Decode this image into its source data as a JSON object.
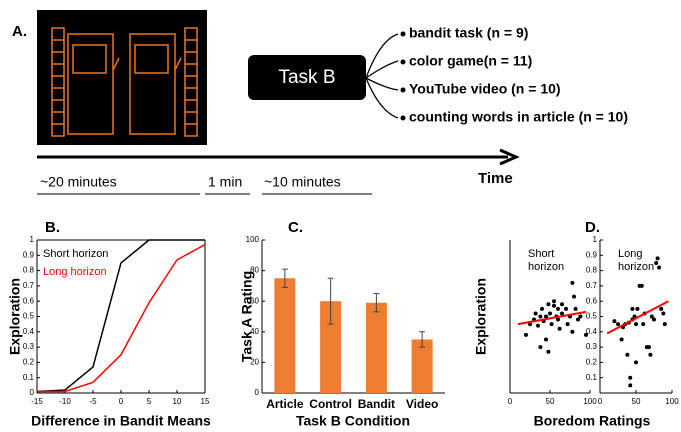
{
  "panel_a": {
    "label": "A.",
    "box_label": "Task B",
    "tasks": [
      "bandit task (n = 9)",
      "color game(n = 11)",
      "YouTube video (n = 10)",
      "counting words in article (n = 10)"
    ],
    "durations": [
      "~20 minutes",
      "1 min",
      "~10 minutes"
    ],
    "axis_label": "Time"
  },
  "chart_data": [
    {
      "type": "line",
      "label": "B.",
      "xlabel": "Difference in Bandit Means",
      "ylabel": "Exploration",
      "x": [
        -15,
        -10,
        -5,
        0,
        5,
        10,
        15
      ],
      "series": [
        {
          "name": "Short horizon",
          "color": "#000000",
          "values": [
            0.01,
            0.02,
            0.17,
            0.85,
            1,
            1,
            1
          ]
        },
        {
          "name": "Long horizon",
          "color": "#ff0000",
          "values": [
            0.01,
            0.01,
            0.07,
            0.25,
            0.59,
            0.87,
            0.97
          ]
        }
      ],
      "xlim": [
        -15,
        15
      ],
      "xticks": [
        -15,
        -10,
        -5,
        0,
        5,
        10,
        15
      ],
      "ylim": [
        0,
        1
      ],
      "yticks": [
        0,
        0.1,
        0.2,
        0.3,
        0.4,
        0.5,
        0.6,
        0.7,
        0.8,
        0.9,
        1
      ]
    },
    {
      "type": "bar",
      "label": "C.",
      "xlabel": "Task B Condition",
      "ylabel": "Task A Rating",
      "categories": [
        "Article",
        "Control",
        "Bandit",
        "Video"
      ],
      "values": [
        75,
        60,
        59,
        35
      ],
      "errors": [
        6,
        15,
        6,
        5
      ],
      "color": "#ed7d31",
      "ylim": [
        0,
        100
      ],
      "yticks": [
        0,
        20,
        40,
        60,
        80,
        100
      ]
    },
    {
      "type": "scatter",
      "label": "D.",
      "xlabel": "Boredom Ratings",
      "ylabel": "Exploration",
      "annotation": [
        "Short",
        "horizon"
      ],
      "x": [
        20,
        25,
        30,
        32,
        35,
        38,
        40,
        42,
        45,
        45,
        48,
        50,
        52,
        55,
        55,
        58,
        60,
        60,
        62,
        65,
        65,
        70,
        72,
        75,
        78,
        80,
        82,
        85,
        88,
        95,
        48,
        38,
        78
      ],
      "values": [
        0.38,
        0.45,
        0.48,
        0.52,
        0.44,
        0.5,
        0.55,
        0.47,
        0.5,
        0.35,
        0.58,
        0.52,
        0.45,
        0.57,
        0.6,
        0.5,
        0.48,
        0.55,
        0.42,
        0.52,
        0.58,
        0.55,
        0.45,
        0.5,
        0.4,
        0.63,
        0.55,
        0.48,
        0.5,
        0.38,
        0.27,
        0.3,
        0.72
      ],
      "color": "#000000",
      "fit": {
        "color": "#ff0000",
        "x": [
          10,
          95
        ],
        "values": [
          0.45,
          0.53
        ]
      },
      "xlim": [
        0,
        100
      ],
      "xticks": [
        0,
        50,
        100
      ],
      "ylim": [
        0,
        1
      ]
    },
    {
      "type": "scatter",
      "annotation": [
        "Long",
        "horizon"
      ],
      "x": [
        20,
        25,
        30,
        32,
        35,
        38,
        40,
        42,
        45,
        45,
        48,
        50,
        50,
        52,
        55,
        58,
        60,
        62,
        65,
        68,
        70,
        72,
        75,
        78,
        80,
        82,
        85,
        88,
        90,
        42
      ],
      "values": [
        0.47,
        0.45,
        0.35,
        0.43,
        0.45,
        0.25,
        0.46,
        0.1,
        0.48,
        0.55,
        0.5,
        0.45,
        0.2,
        0.55,
        0.7,
        0.7,
        0.45,
        0.52,
        0.3,
        0.3,
        0.25,
        0.5,
        0.48,
        0.85,
        0.88,
        0.82,
        0.55,
        0.52,
        0.45,
        0.05
      ],
      "color": "#000000",
      "fit": {
        "color": "#ff0000",
        "x": [
          10,
          95
        ],
        "values": [
          0.39,
          0.6
        ]
      },
      "xlim": [
        0,
        100
      ],
      "xticks": [
        0,
        50,
        100
      ],
      "ylim": [
        0,
        1
      ],
      "yticks": [
        0.1,
        0.2,
        0.3,
        0.4,
        0.5,
        0.6,
        0.7,
        0.8,
        0.9,
        1
      ]
    }
  ]
}
